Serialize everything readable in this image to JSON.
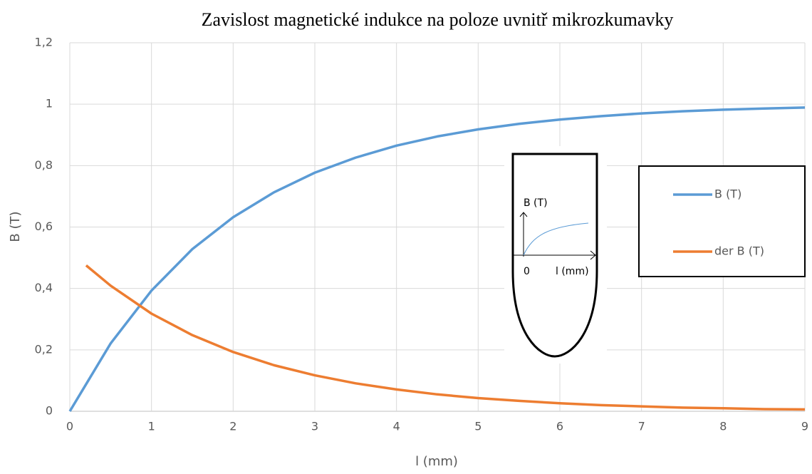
{
  "chart_data": {
    "type": "line",
    "title": "Zavislost magnetické indukce na poloze uvnitř mikrozkumavky",
    "x_label": "l (mm)",
    "y_label": "B (T)",
    "xlim": [
      0,
      9
    ],
    "xticks": [
      0,
      1,
      2,
      3,
      4,
      5,
      6,
      7,
      8,
      9
    ],
    "ylim": [
      0,
      1.2
    ],
    "yticks": [
      0,
      {
        "value": 0.2,
        "label": "0,2"
      },
      {
        "value": 0.4,
        "label": "0,4"
      },
      {
        "value": 0.6,
        "label": "0,6"
      },
      {
        "value": 0.8,
        "label": "0,8"
      },
      1,
      {
        "value": 1.2,
        "label": "1,2"
      }
    ],
    "grid": true,
    "legend": "right",
    "series": [
      {
        "name": "B (T)",
        "color": "#5b9bd5",
        "x": [
          0,
          0.5,
          1,
          1.5,
          2,
          2.5,
          3,
          3.5,
          4,
          4.5,
          5,
          5.5,
          6,
          6.5,
          7,
          7.5,
          8,
          8.5,
          9
        ],
        "values": [
          0,
          0.221,
          0.393,
          0.528,
          0.632,
          0.713,
          0.777,
          0.826,
          0.865,
          0.895,
          0.918,
          0.936,
          0.95,
          0.961,
          0.97,
          0.977,
          0.982,
          0.986,
          0.989
        ]
      },
      {
        "name": "der B (T)",
        "color": "#ed7d31",
        "x": [
          0.2,
          0.5,
          1,
          1.5,
          2,
          2.5,
          3,
          3.5,
          4,
          4.5,
          5,
          5.5,
          6,
          6.5,
          7,
          7.5,
          8,
          8.5,
          9
        ],
        "values": [
          0.475,
          0.409,
          0.318,
          0.248,
          0.193,
          0.15,
          0.117,
          0.091,
          0.071,
          0.055,
          0.043,
          0.034,
          0.026,
          0.02,
          0.016,
          0.012,
          0.01,
          0.007,
          0.006
        ]
      }
    ],
    "inset": {
      "y_label": "B (T)",
      "origin": "0",
      "x_label": "l (mm)"
    }
  }
}
